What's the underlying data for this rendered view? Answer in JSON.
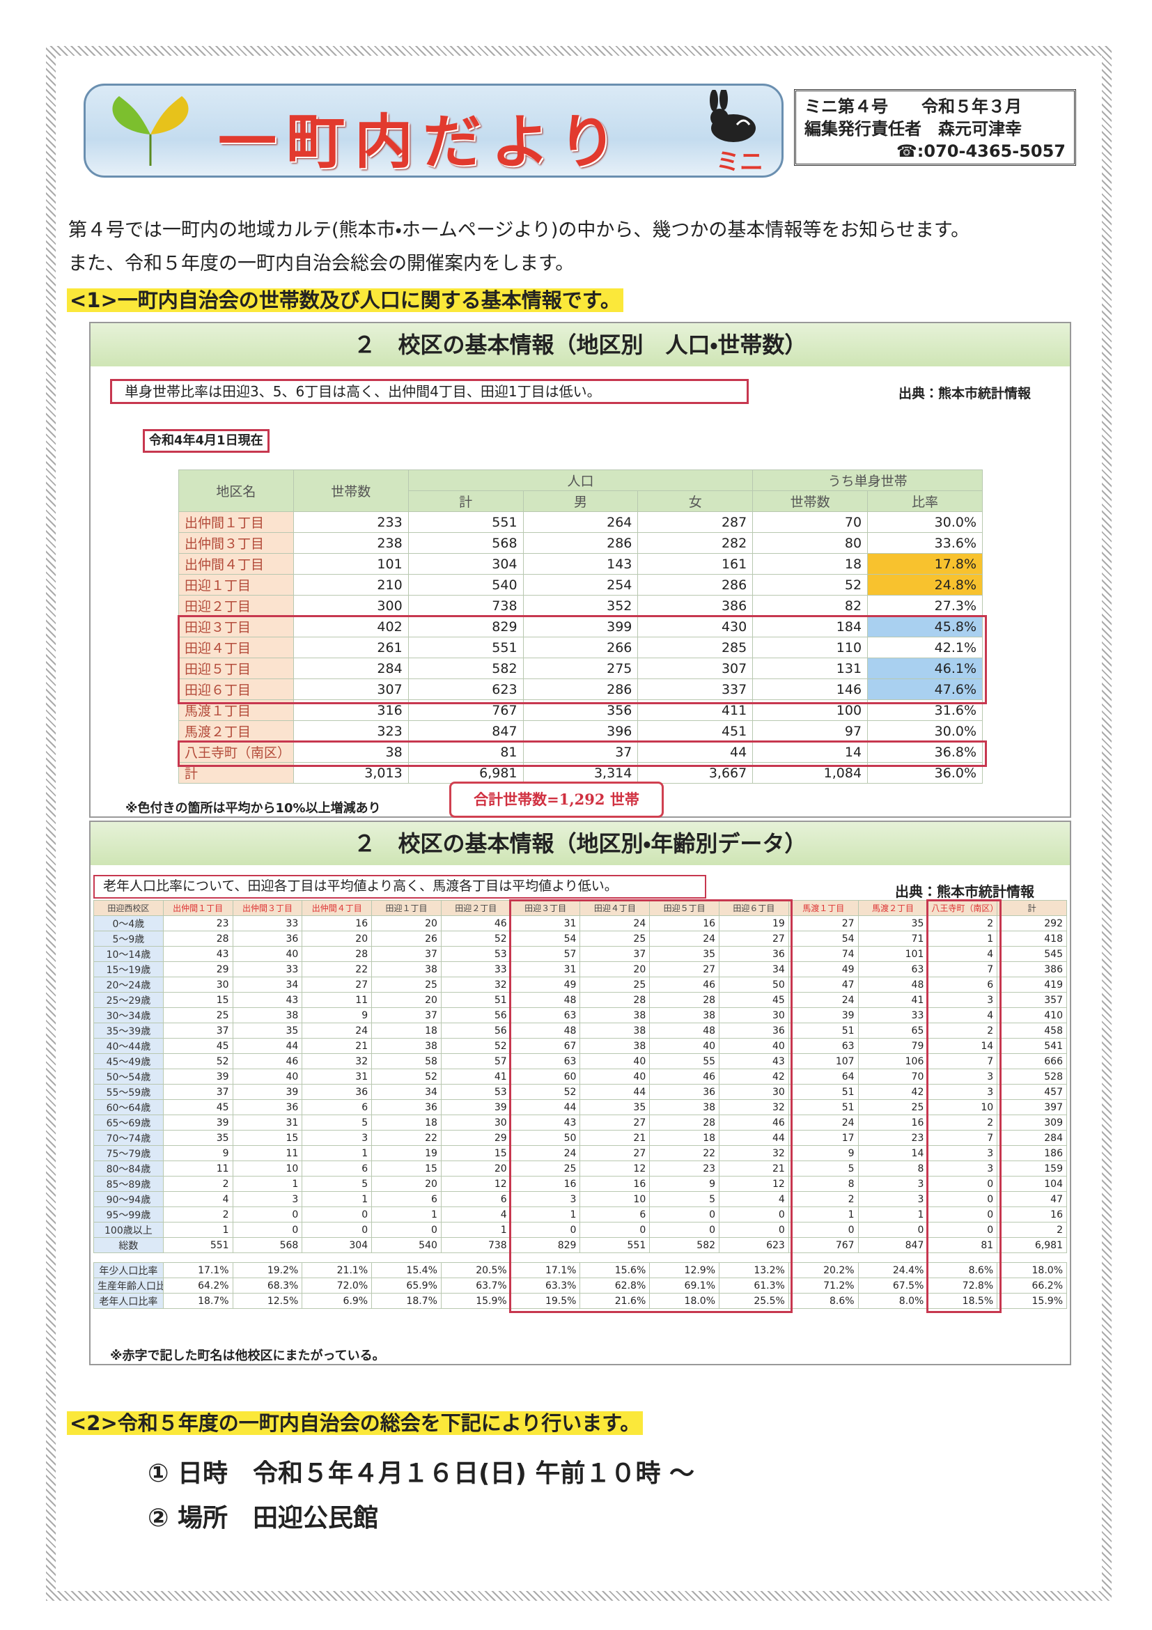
{
  "header": {
    "title": "一町内だより",
    "subtitle": "ミニ",
    "issue": "ミニ第４号　　令和５年３月",
    "editor": "編集発行責任者　森元可津幸",
    "phone": "☎:070-4365-5057"
  },
  "intro": [
    "第４号では一町内の地域カルテ(熊本市・ホームページより)の中から、幾つかの基本情報等をお知らせます。",
    "また、令和５年度の一町内自治会総会の開催案内をします。"
  ],
  "section1": {
    "heading": "<1>一町内自治会の世帯数及び人口に関する基本情報です。"
  },
  "table1": {
    "title": "２　校区の基本情報（地区別　人口・世帯数）",
    "note": "単身世帯比率は田迎3、5、6丁目は高く、出仲間4丁目、田迎1丁目は低い。",
    "source": "出典：熊本市統計情報",
    "as_of": "令和4年4月1日現在",
    "headers": {
      "district": "地区名",
      "households": "世帯数",
      "population": "人口",
      "population_cols": [
        "計",
        "男",
        "女"
      ],
      "single": "うち単身世帯",
      "single_cols": [
        "世帯数",
        "比率"
      ]
    },
    "rows": [
      [
        "出仲間１丁目",
        "233",
        "551",
        "264",
        "287",
        "70",
        "30.0%"
      ],
      [
        "出仲間３丁目",
        "238",
        "568",
        "286",
        "282",
        "80",
        "33.6%"
      ],
      [
        "出仲間４丁目",
        "101",
        "304",
        "143",
        "161",
        "18",
        "17.8%"
      ],
      [
        "田迎１丁目",
        "210",
        "540",
        "254",
        "286",
        "52",
        "24.8%"
      ],
      [
        "田迎２丁目",
        "300",
        "738",
        "352",
        "386",
        "82",
        "27.3%"
      ],
      [
        "田迎３丁目",
        "402",
        "829",
        "399",
        "430",
        "184",
        "45.8%"
      ],
      [
        "田迎４丁目",
        "261",
        "551",
        "266",
        "285",
        "110",
        "42.1%"
      ],
      [
        "田迎５丁目",
        "284",
        "582",
        "275",
        "307",
        "131",
        "46.1%"
      ],
      [
        "田迎６丁目",
        "307",
        "623",
        "286",
        "337",
        "146",
        "47.6%"
      ],
      [
        "馬渡１丁目",
        "316",
        "767",
        "356",
        "411",
        "100",
        "31.6%"
      ],
      [
        "馬渡２丁目",
        "323",
        "847",
        "396",
        "451",
        "97",
        "30.0%"
      ],
      [
        "八王寺町（南区）",
        "38",
        "81",
        "37",
        "44",
        "14",
        "36.8%"
      ],
      [
        "計",
        "3,013",
        "6,981",
        "3,314",
        "3,667",
        "1,084",
        "36.0%"
      ]
    ],
    "rate_colors": [
      null,
      null,
      "#f8c22e",
      "#f8c22e",
      null,
      "#a9d0f0",
      null,
      "#a9d0f0",
      "#a9d0f0",
      null,
      null,
      null,
      null
    ],
    "footnote": "※色付きの箇所は平均から10%以上増減あり",
    "callout": "合計世帯数=1,292 世帯"
  },
  "table2": {
    "title": "２　校区の基本情報（地区別・年齢別データ）",
    "note": "老年人口比率について、田迎各丁目は平均値より高く、馬渡各丁目は平均値より低い。",
    "source": "出典：熊本市統計情報",
    "columns": [
      "田迎西校区",
      "出仲間１丁目",
      "出仲間３丁目",
      "出仲間４丁目",
      "田迎１丁目",
      "田迎２丁目",
      "田迎３丁目",
      "田迎４丁目",
      "田迎５丁目",
      "田迎６丁目",
      "馬渡１丁目",
      "馬渡２丁目",
      "八王寺町（南区）",
      "計"
    ],
    "rows": [
      [
        "0～4歳",
        "23",
        "33",
        "16",
        "20",
        "46",
        "31",
        "24",
        "16",
        "19",
        "27",
        "35",
        "2",
        "292"
      ],
      [
        "5～9歳",
        "28",
        "36",
        "20",
        "26",
        "52",
        "54",
        "25",
        "24",
        "27",
        "54",
        "71",
        "1",
        "418"
      ],
      [
        "10～14歳",
        "43",
        "40",
        "28",
        "37",
        "53",
        "57",
        "37",
        "35",
        "36",
        "74",
        "101",
        "4",
        "545"
      ],
      [
        "15～19歳",
        "29",
        "33",
        "22",
        "38",
        "33",
        "31",
        "20",
        "27",
        "34",
        "49",
        "63",
        "7",
        "386"
      ],
      [
        "20～24歳",
        "30",
        "34",
        "27",
        "25",
        "32",
        "49",
        "25",
        "46",
        "50",
        "47",
        "48",
        "6",
        "419"
      ],
      [
        "25～29歳",
        "15",
        "43",
        "11",
        "20",
        "51",
        "48",
        "28",
        "28",
        "45",
        "24",
        "41",
        "3",
        "357"
      ],
      [
        "30～34歳",
        "25",
        "38",
        "9",
        "37",
        "56",
        "63",
        "38",
        "38",
        "30",
        "39",
        "33",
        "4",
        "410"
      ],
      [
        "35～39歳",
        "37",
        "35",
        "24",
        "18",
        "56",
        "48",
        "38",
        "48",
        "36",
        "51",
        "65",
        "2",
        "458"
      ],
      [
        "40～44歳",
        "45",
        "44",
        "21",
        "38",
        "52",
        "67",
        "38",
        "40",
        "40",
        "63",
        "79",
        "14",
        "541"
      ],
      [
        "45～49歳",
        "52",
        "46",
        "32",
        "58",
        "57",
        "63",
        "40",
        "55",
        "43",
        "107",
        "106",
        "7",
        "666"
      ],
      [
        "50～54歳",
        "39",
        "40",
        "31",
        "52",
        "41",
        "60",
        "40",
        "46",
        "42",
        "64",
        "70",
        "3",
        "528"
      ],
      [
        "55～59歳",
        "37",
        "39",
        "36",
        "34",
        "53",
        "52",
        "44",
        "36",
        "30",
        "51",
        "42",
        "3",
        "457"
      ],
      [
        "60～64歳",
        "45",
        "36",
        "6",
        "36",
        "39",
        "44",
        "35",
        "38",
        "32",
        "51",
        "25",
        "10",
        "397"
      ],
      [
        "65～69歳",
        "39",
        "31",
        "5",
        "18",
        "30",
        "43",
        "27",
        "28",
        "46",
        "24",
        "16",
        "2",
        "309"
      ],
      [
        "70～74歳",
        "35",
        "15",
        "3",
        "22",
        "29",
        "50",
        "21",
        "18",
        "44",
        "17",
        "23",
        "7",
        "284"
      ],
      [
        "75～79歳",
        "9",
        "11",
        "1",
        "19",
        "15",
        "24",
        "27",
        "22",
        "32",
        "9",
        "14",
        "3",
        "186"
      ],
      [
        "80～84歳",
        "11",
        "10",
        "6",
        "15",
        "20",
        "25",
        "12",
        "23",
        "21",
        "5",
        "8",
        "3",
        "159"
      ],
      [
        "85～89歳",
        "2",
        "1",
        "5",
        "20",
        "12",
        "16",
        "16",
        "9",
        "12",
        "8",
        "3",
        "0",
        "104"
      ],
      [
        "90～94歳",
        "4",
        "3",
        "1",
        "6",
        "6",
        "3",
        "10",
        "5",
        "4",
        "2",
        "3",
        "0",
        "47"
      ],
      [
        "95～99歳",
        "2",
        "0",
        "0",
        "1",
        "4",
        "1",
        "6",
        "0",
        "0",
        "1",
        "1",
        "0",
        "16"
      ],
      [
        "100歳以上",
        "1",
        "0",
        "0",
        "0",
        "1",
        "0",
        "0",
        "0",
        "0",
        "0",
        "0",
        "0",
        "2"
      ],
      [
        "総数",
        "551",
        "568",
        "304",
        "540",
        "738",
        "829",
        "551",
        "582",
        "623",
        "767",
        "847",
        "81",
        "6,981"
      ]
    ],
    "ratio_rows": [
      [
        "年少人口比率",
        "17.1%",
        "19.2%",
        "21.1%",
        "15.4%",
        "20.5%",
        "17.1%",
        "15.6%",
        "12.9%",
        "13.2%",
        "20.2%",
        "24.4%",
        "8.6%",
        "18.0%"
      ],
      [
        "生産年齢人口比率",
        "64.2%",
        "68.3%",
        "72.0%",
        "65.9%",
        "63.7%",
        "63.3%",
        "62.8%",
        "69.1%",
        "61.3%",
        "71.2%",
        "67.5%",
        "72.8%",
        "66.2%"
      ],
      [
        "老年人口比率",
        "18.7%",
        "12.5%",
        "6.9%",
        "18.7%",
        "15.9%",
        "19.5%",
        "21.6%",
        "18.0%",
        "25.5%",
        "8.6%",
        "8.0%",
        "18.5%",
        "15.9%"
      ]
    ],
    "footnote": "※赤字で記した町名は他校区にまたがっている。"
  },
  "section2": {
    "heading": "<2>令和５年度の一町内自治会の総会を下記により行います。",
    "items": [
      "① 日時　令和５年４月１６日(日) 午前１０時 ～",
      "② 場所　田迎公民館"
    ]
  }
}
